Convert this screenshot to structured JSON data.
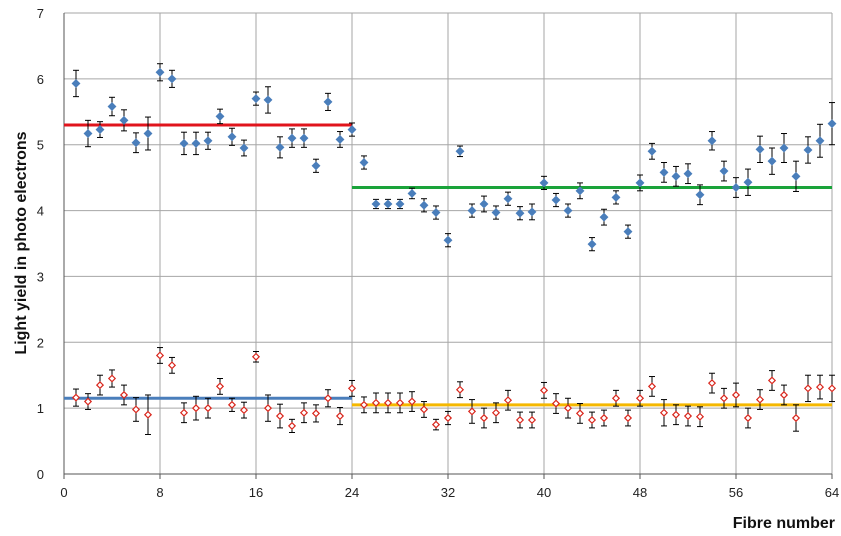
{
  "chart_data": {
    "type": "scatter",
    "title": "",
    "xlabel": "Fibre number",
    "ylabel": "Light yield in photo electrons",
    "xlim": [
      0,
      64
    ],
    "ylim": [
      0,
      7
    ],
    "x_ticks": [
      0,
      8,
      16,
      24,
      32,
      40,
      48,
      56,
      64
    ],
    "y_ticks": [
      0,
      1,
      2,
      3,
      4,
      5,
      6,
      7
    ],
    "grid": true,
    "colors": {
      "upper_points": "#4a7ebb",
      "lower_points": "#d9261c",
      "upper_left_mean": "#e0141c",
      "upper_right_mean": "#1aa33a",
      "lower_left_mean": "#4a7ebb",
      "lower_right_mean": "#f5b800",
      "grid": "#a6a6a6",
      "error_bar": "#000000"
    },
    "series": [
      {
        "marker": "diamond-filled",
        "x": [
          1,
          2,
          3,
          4,
          5,
          6,
          7,
          8,
          9,
          10,
          11,
          12,
          13,
          14,
          15,
          16,
          17,
          18,
          19,
          20,
          21,
          22,
          23,
          24,
          25,
          26,
          27,
          28,
          29,
          30,
          31,
          32,
          33,
          34,
          35,
          36,
          37,
          38,
          39,
          40,
          41,
          42,
          43,
          44,
          45,
          46,
          47,
          48,
          49,
          50,
          51,
          52,
          53,
          54,
          55,
          56,
          57,
          58,
          59,
          60,
          61,
          62,
          63,
          64
        ],
        "y": [
          5.93,
          5.17,
          5.23,
          5.58,
          5.37,
          5.03,
          5.17,
          6.1,
          6.0,
          5.02,
          5.02,
          5.06,
          5.43,
          5.12,
          4.95,
          5.7,
          5.68,
          4.96,
          5.1,
          5.1,
          4.68,
          5.65,
          5.08,
          5.23,
          4.73,
          4.1,
          4.1,
          4.1,
          4.26,
          4.08,
          3.97,
          3.55,
          4.9,
          4.0,
          4.1,
          3.97,
          4.18,
          3.96,
          3.98,
          4.42,
          4.16,
          4.0,
          4.3,
          3.49,
          3.9,
          4.2,
          3.68,
          4.42,
          4.9,
          4.58,
          4.52,
          4.56,
          4.24,
          5.06,
          4.6,
          4.35,
          4.43,
          4.93,
          4.75,
          4.95,
          4.52,
          4.92,
          5.06,
          5.32
        ],
        "err": [
          0.2,
          0.2,
          0.12,
          0.14,
          0.16,
          0.15,
          0.25,
          0.13,
          0.13,
          0.17,
          0.17,
          0.13,
          0.11,
          0.13,
          0.12,
          0.1,
          0.2,
          0.16,
          0.14,
          0.14,
          0.1,
          0.13,
          0.12,
          0.1,
          0.1,
          0.07,
          0.07,
          0.07,
          0.08,
          0.1,
          0.1,
          0.1,
          0.08,
          0.1,
          0.12,
          0.1,
          0.1,
          0.1,
          0.12,
          0.1,
          0.1,
          0.1,
          0.12,
          0.1,
          0.12,
          0.1,
          0.1,
          0.12,
          0.12,
          0.15,
          0.15,
          0.15,
          0.15,
          0.14,
          0.15,
          0.15,
          0.2,
          0.2,
          0.2,
          0.22,
          0.23,
          0.2,
          0.25,
          0.32
        ]
      },
      {
        "marker": "diamond-open",
        "x": [
          1,
          2,
          3,
          4,
          5,
          6,
          7,
          8,
          9,
          10,
          11,
          12,
          13,
          14,
          15,
          16,
          17,
          18,
          19,
          20,
          21,
          22,
          23,
          24,
          25,
          26,
          27,
          28,
          29,
          30,
          31,
          32,
          33,
          34,
          35,
          36,
          37,
          38,
          39,
          40,
          41,
          42,
          43,
          44,
          45,
          46,
          47,
          48,
          49,
          50,
          51,
          52,
          53,
          54,
          55,
          56,
          57,
          58,
          59,
          60,
          61,
          62,
          63,
          64
        ],
        "y": [
          1.16,
          1.1,
          1.35,
          1.45,
          1.2,
          0.98,
          0.9,
          1.8,
          1.65,
          0.93,
          1.0,
          1.0,
          1.33,
          1.05,
          0.97,
          1.78,
          1.0,
          0.88,
          0.73,
          0.93,
          0.92,
          1.15,
          0.88,
          1.3,
          1.05,
          1.08,
          1.08,
          1.08,
          1.1,
          0.98,
          0.75,
          0.85,
          1.28,
          0.95,
          0.85,
          0.93,
          1.12,
          0.82,
          0.82,
          1.27,
          1.07,
          1.0,
          0.92,
          0.82,
          0.85,
          1.15,
          0.85,
          1.15,
          1.33,
          0.93,
          0.9,
          0.88,
          0.87,
          1.38,
          1.15,
          1.2,
          0.85,
          1.13,
          1.42,
          1.2,
          0.85,
          1.3,
          1.32,
          1.3
        ]
      }
    ],
    "error_bar_low": [
      0.13,
      0.12,
      0.15,
      0.13,
      0.15,
      0.18,
      0.3,
      0.12,
      0.12,
      0.15,
      0.18,
      0.15,
      0.12,
      0.1,
      0.12,
      0.08,
      0.2,
      0.18,
      0.1,
      0.15,
      0.13,
      0.13,
      0.13,
      0.12,
      0.12,
      0.15,
      0.15,
      0.15,
      0.15,
      0.12,
      0.08,
      0.1,
      0.12,
      0.18,
      0.15,
      0.15,
      0.15,
      0.12,
      0.12,
      0.12,
      0.15,
      0.15,
      0.15,
      0.12,
      0.12,
      0.12,
      0.12,
      0.12,
      0.15,
      0.2,
      0.15,
      0.15,
      0.15,
      0.15,
      0.15,
      0.18,
      0.15,
      0.15,
      0.15,
      0.15,
      0.2,
      0.2,
      0.18,
      0.2
    ],
    "mean_lines": [
      {
        "x": [
          0,
          24
        ],
        "y": 5.3
      },
      {
        "x": [
          24,
          64
        ],
        "y": 4.35
      },
      {
        "x": [
          0,
          24
        ],
        "y": 1.15
      },
      {
        "x": [
          24,
          64
        ],
        "y": 1.05
      }
    ]
  }
}
